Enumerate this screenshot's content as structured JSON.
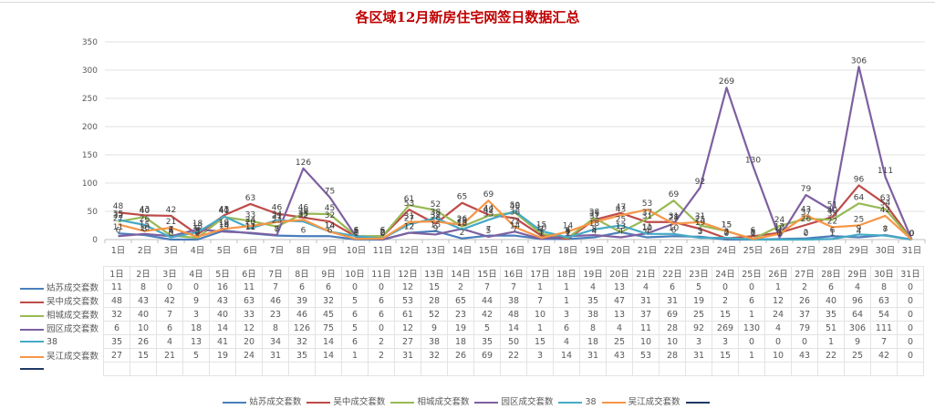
{
  "chart_data": {
    "type": "line",
    "title": "各区域12月新房住宅网签日数据汇总",
    "xlabel": "",
    "ylabel": "",
    "ylim": [
      0,
      350
    ],
    "yticks": [
      0,
      50,
      100,
      150,
      200,
      250,
      300,
      350
    ],
    "grid": true,
    "legend_position": "bottom",
    "categories": [
      "1日",
      "2日",
      "3日",
      "4日",
      "5日",
      "6日",
      "7日",
      "8日",
      "9日",
      "10日",
      "11日",
      "12日",
      "13日",
      "14日",
      "15日",
      "16日",
      "17日",
      "18日",
      "19日",
      "20日",
      "21日",
      "22日",
      "23日",
      "24日",
      "25日",
      "26日",
      "27日",
      "28日",
      "29日",
      "30日",
      "31日"
    ],
    "series": [
      {
        "name": "姑苏成交套数",
        "color": "#4a7ebb",
        "values": [
          11,
          8,
          0,
          0,
          16,
          11,
          7,
          6,
          6,
          0,
          0,
          12,
          15,
          2,
          7,
          7,
          1,
          1,
          4,
          13,
          4,
          6,
          5,
          0,
          0,
          1,
          2,
          6,
          4,
          8,
          0
        ]
      },
      {
        "name": "吴中成交套数",
        "color": "#be4b48",
        "values": [
          48,
          43,
          42,
          9,
          43,
          63,
          46,
          39,
          32,
          5,
          6,
          53,
          28,
          65,
          44,
          38,
          7,
          1,
          35,
          47,
          31,
          31,
          19,
          2,
          6,
          12,
          26,
          40,
          96,
          63,
          0
        ]
      },
      {
        "name": "相城成交套数",
        "color": "#98b954",
        "values": [
          32,
          40,
          7,
          3,
          40,
          33,
          23,
          46,
          45,
          6,
          6,
          61,
          52,
          23,
          42,
          48,
          10,
          3,
          38,
          13,
          37,
          69,
          25,
          15,
          1,
          24,
          37,
          35,
          64,
          54,
          0
        ]
      },
      {
        "name": "园区成交套数",
        "color": "#7d60a0",
        "values": [
          6,
          10,
          6,
          18,
          14,
          12,
          8,
          126,
          75,
          5,
          0,
          12,
          9,
          19,
          5,
          14,
          1,
          6,
          8,
          4,
          11,
          28,
          92,
          269,
          130,
          4,
          79,
          51,
          306,
          111,
          0
        ]
      },
      {
        "name": "38",
        "color": "#46aac5",
        "values": [
          35,
          26,
          4,
          13,
          41,
          20,
          34,
          32,
          14,
          6,
          2,
          27,
          38,
          18,
          35,
          50,
          15,
          4,
          18,
          25,
          10,
          10,
          3,
          3,
          0,
          0,
          0,
          1,
          9,
          7,
          0
        ]
      },
      {
        "name": "吴江成交套数",
        "color": "#f79646",
        "values": [
          27,
          15,
          21,
          5,
          19,
          24,
          31,
          35,
          14,
          1,
          2,
          31,
          32,
          26,
          69,
          22,
          3,
          14,
          31,
          43,
          53,
          28,
          31,
          15,
          1,
          10,
          43,
          22,
          25,
          42,
          0
        ]
      },
      {
        "name": "",
        "color": "#1f3864",
        "values": []
      }
    ]
  },
  "ui": {
    "title": "各区域12月新房住宅网签日数据汇总"
  }
}
